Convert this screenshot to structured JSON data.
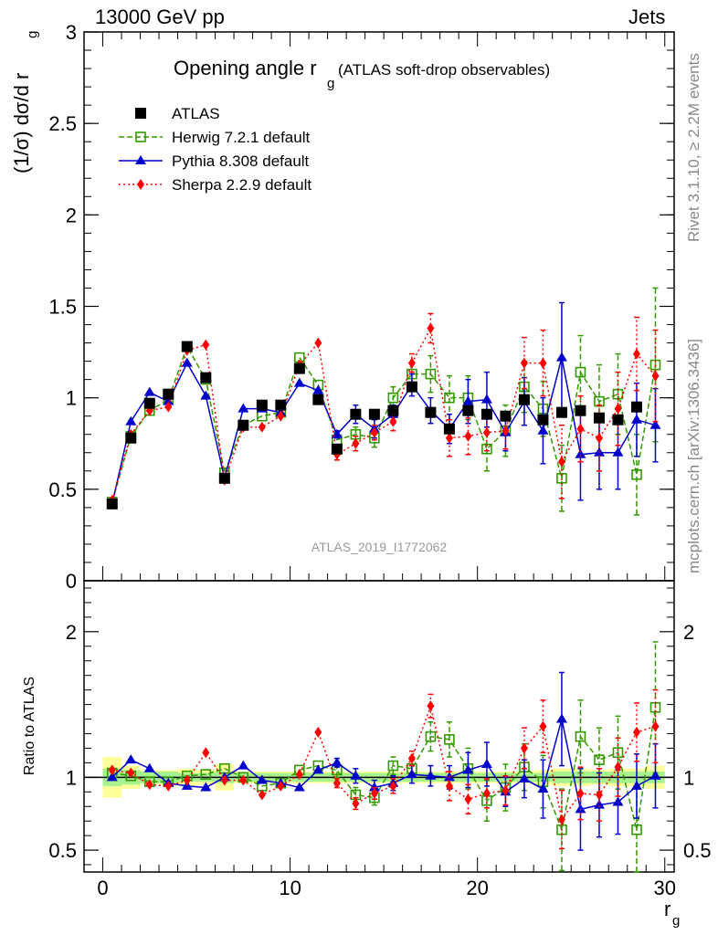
{
  "header": {
    "left": "13000 GeV pp",
    "right": "Jets"
  },
  "side_texts": {
    "rivet": "Rivet 3.1.10, ≥ 2.2M events",
    "mcplots": "mcplots.cern.ch [arXiv:1306.3436]"
  },
  "watermark": "ATLAS_2019_I1772062",
  "colors": {
    "atlas": "#000000",
    "herwig": "#339900",
    "pythia": "#0000cc",
    "sherpa": "#ff0000",
    "band_inner": "#a6f28f",
    "band_outer": "#ffff99"
  },
  "chart_data": [
    {
      "type": "scatter",
      "title_main": "Opening angle r",
      "title_sub": "g",
      "title_rest": " (ATLAS soft-drop observables)",
      "ylabel": "(1/σ) dσ/d r",
      "ylabel_sub": "g",
      "xlabel": "r",
      "xlabel_sub": "g",
      "xlim": [
        -1,
        30.5
      ],
      "ylim": [
        0,
        3
      ],
      "y_ticks": [
        {
          "v": 0,
          "t": "0"
        },
        {
          "v": 0.5,
          "t": "0.5"
        },
        {
          "v": 1,
          "t": "1"
        },
        {
          "v": 1.5,
          "t": "1.5"
        },
        {
          "v": 2,
          "t": "2"
        },
        {
          "v": 2.5,
          "t": "2.5"
        },
        {
          "v": 3,
          "t": "3"
        }
      ],
      "x": [
        0.5,
        1.5,
        2.5,
        3.5,
        4.5,
        5.5,
        6.5,
        7.5,
        8.5,
        9.5,
        10.5,
        11.5,
        12.5,
        13.5,
        14.5,
        15.5,
        16.5,
        17.5,
        18.5,
        19.5,
        20.5,
        21.5,
        22.5,
        23.5,
        24.5,
        25.5,
        26.5,
        27.5,
        28.5,
        29.5
      ],
      "series": [
        {
          "name": "ATLAS",
          "marker": "square-filled",
          "line": "none",
          "values": [
            0.42,
            0.78,
            0.97,
            1.02,
            1.28,
            1.11,
            0.56,
            0.85,
            0.96,
            0.96,
            1.16,
            0.99,
            0.72,
            0.91,
            0.91,
            0.93,
            1.06,
            0.92,
            0.83,
            0.93,
            0.91,
            0.9,
            0.99,
            0.88,
            0.92,
            0.93,
            0.89,
            0.88,
            0.95,
            null
          ]
        },
        {
          "name": "Herwig 7.2.1 default",
          "marker": "square-open",
          "line": "dashed",
          "values": [
            0.43,
            0.79,
            0.93,
            0.99,
            1.28,
            1.1,
            0.59,
            0.85,
            0.9,
            0.92,
            1.22,
            1.07,
            0.77,
            0.8,
            0.78,
            1.0,
            1.13,
            1.13,
            1.0,
            1.0,
            0.72,
            0.82,
            1.06,
            0.94,
            0.56,
            1.14,
            0.98,
            1.02,
            0.58,
            1.18
          ],
          "err": [
            0,
            0,
            0,
            0,
            0,
            0,
            0,
            0,
            0,
            0,
            0,
            0,
            0,
            0.04,
            0.05,
            0.06,
            0.06,
            0.1,
            0.12,
            0.12,
            0.12,
            0.14,
            0.14,
            0.15,
            0.18,
            0.2,
            0.2,
            0.22,
            0.22,
            0.42
          ]
        },
        {
          "name": "Pythia 8.308 default",
          "marker": "triangle-filled",
          "line": "solid",
          "values": [
            0.42,
            0.87,
            1.03,
            0.98,
            1.19,
            1.01,
            0.56,
            0.94,
            0.94,
            0.92,
            1.08,
            1.04,
            0.8,
            0.91,
            0.83,
            0.91,
            1.07,
            0.93,
            0.83,
            0.98,
            0.99,
            0.81,
            0.98,
            0.82,
            1.22,
            0.69,
            0.7,
            0.7,
            0.88,
            0.85
          ],
          "err": [
            0,
            0,
            0,
            0,
            0,
            0,
            0,
            0,
            0,
            0,
            0,
            0,
            0.02,
            0.05,
            0.05,
            0.05,
            0.06,
            0.07,
            0.08,
            0.12,
            0.15,
            0.1,
            0.13,
            0.18,
            0.3,
            0.25,
            0.2,
            0.2,
            0.2,
            0.2
          ]
        },
        {
          "name": "Sherpa 2.2.9 default",
          "marker": "diamond-filled",
          "line": "dotted",
          "values": [
            0.44,
            0.8,
            0.93,
            0.95,
            1.26,
            1.29,
            0.55,
            0.84,
            0.84,
            0.9,
            1.18,
            1.3,
            0.69,
            0.75,
            0.81,
            0.87,
            1.19,
            1.38,
            0.78,
            0.79,
            0.81,
            0.82,
            1.19,
            1.19,
            0.65,
            0.83,
            0.78,
            0.94,
            1.24,
            1.12
          ],
          "err": [
            0,
            0,
            0,
            0,
            0,
            0,
            0,
            0,
            0,
            0,
            0,
            0,
            0.03,
            0.04,
            0.04,
            0.05,
            0.05,
            0.08,
            0.1,
            0.1,
            0.1,
            0.1,
            0.14,
            0.18,
            0.2,
            0.18,
            0.18,
            0.2,
            0.2,
            0.25
          ]
        }
      ],
      "legend_position": "top-left"
    },
    {
      "type": "scatter",
      "ylabel": "Ratio to ATLAS",
      "ylim": [
        0.35,
        2.35
      ],
      "y_ticks": [
        {
          "v": 0.5,
          "t": "0.5"
        },
        {
          "v": 1,
          "t": "1"
        },
        {
          "v": 2,
          "t": "2"
        }
      ],
      "x_ticks": [
        {
          "v": 0,
          "t": "0"
        },
        {
          "v": 10,
          "t": "10"
        },
        {
          "v": 20,
          "t": "20"
        },
        {
          "v": 30,
          "t": "30"
        }
      ],
      "band_inner": [
        0.06,
        0.05,
        0.04,
        0.04,
        0.03,
        0.03,
        0.04,
        0.03,
        0.03,
        0.03,
        0.03,
        0.03,
        0.03,
        0.03,
        0.03,
        0.03,
        0.03,
        0.03,
        0.03,
        0.03,
        0.03,
        0.03,
        0.03,
        0.03,
        0.04,
        0.04,
        0.04,
        0.04,
        0.04,
        0.04
      ],
      "band_outer": [
        0.14,
        0.08,
        0.05,
        0.05,
        0.06,
        0.05,
        0.09,
        0.04,
        0.04,
        0.04,
        0.04,
        0.04,
        0.04,
        0.04,
        0.04,
        0.04,
        0.04,
        0.04,
        0.04,
        0.04,
        0.04,
        0.04,
        0.04,
        0.05,
        0.06,
        0.06,
        0.05,
        0.06,
        0.06,
        0.08
      ],
      "series": [
        {
          "name": "Herwig 7.2.1 default",
          "values": [
            1.03,
            1.01,
            0.97,
            0.97,
            1.01,
            1.02,
            1.06,
            1.0,
            0.94,
            0.96,
            1.05,
            1.08,
            1.05,
            0.88,
            0.86,
            1.08,
            1.06,
            1.28,
            1.26,
            1.06,
            0.84,
            0.93,
            1.07,
            0.97,
            0.64,
            1.28,
            1.12,
            1.17,
            0.64,
            1.48
          ],
          "err": [
            0,
            0,
            0,
            0,
            0,
            0,
            0,
            0,
            0,
            0,
            0,
            0,
            0.05,
            0.05,
            0.05,
            0.06,
            0.06,
            0.1,
            0.12,
            0.14,
            0.14,
            0.16,
            0.16,
            0.18,
            0.28,
            0.25,
            0.22,
            0.25,
            0.3,
            0.45
          ]
        },
        {
          "name": "Pythia 8.308 default",
          "values": [
            1.0,
            1.12,
            1.06,
            0.96,
            0.94,
            0.93,
            1.0,
            1.08,
            0.98,
            0.96,
            0.93,
            1.05,
            1.1,
            1.01,
            0.93,
            0.96,
            1.02,
            1.01,
            1.0,
            1.05,
            1.09,
            0.9,
            0.99,
            0.92,
            1.4,
            0.78,
            0.81,
            0.83,
            0.94,
            1.01
          ],
          "err": [
            0,
            0,
            0,
            0,
            0,
            0,
            0,
            0,
            0,
            0,
            0,
            0,
            0.03,
            0.05,
            0.05,
            0.05,
            0.06,
            0.07,
            0.08,
            0.12,
            0.15,
            0.1,
            0.13,
            0.2,
            0.32,
            0.28,
            0.22,
            0.22,
            0.22,
            0.22
          ]
        },
        {
          "name": "Sherpa 2.2.9 default",
          "values": [
            1.05,
            1.03,
            0.95,
            0.94,
            0.98,
            1.17,
            0.98,
            0.98,
            0.88,
            0.94,
            1.02,
            1.31,
            0.96,
            0.82,
            0.89,
            0.94,
            1.13,
            1.49,
            0.94,
            0.85,
            0.89,
            0.91,
            1.2,
            1.35,
            0.71,
            0.89,
            0.88,
            1.07,
            1.31,
            1.35
          ],
          "err": [
            0,
            0,
            0,
            0,
            0,
            0,
            0,
            0,
            0,
            0,
            0,
            0,
            0.03,
            0.04,
            0.04,
            0.05,
            0.05,
            0.08,
            0.1,
            0.1,
            0.1,
            0.1,
            0.14,
            0.18,
            0.2,
            0.18,
            0.18,
            0.2,
            0.2,
            0.25
          ]
        }
      ]
    }
  ]
}
